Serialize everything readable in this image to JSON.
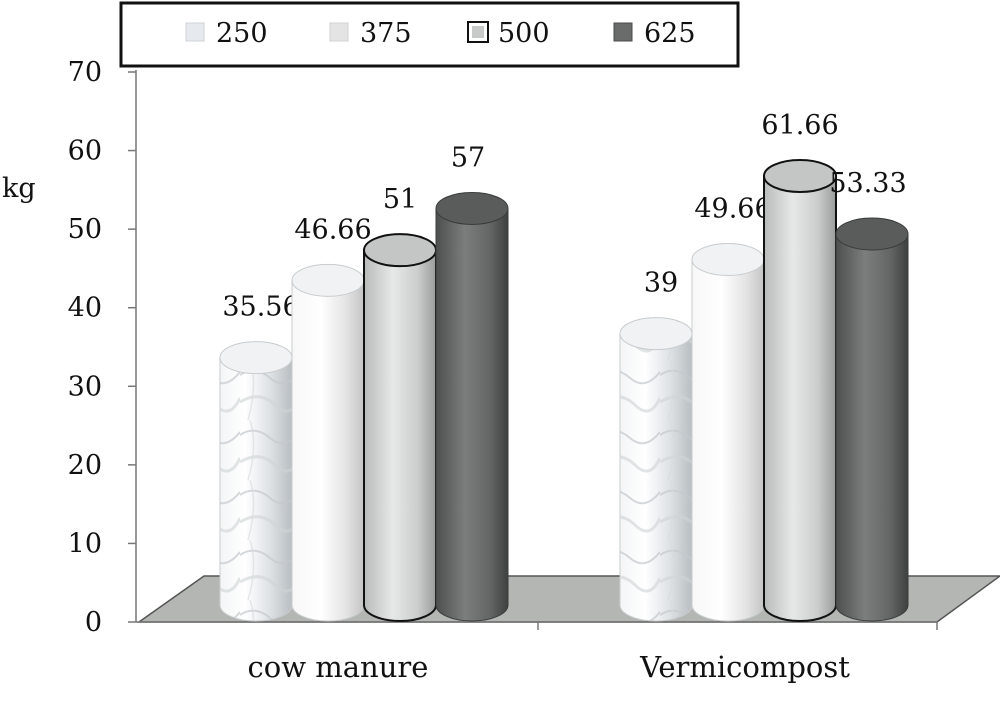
{
  "chart_data": {
    "type": "bar",
    "style": "3d-cylinder",
    "ylabel": "kg",
    "ylim": [
      0,
      70
    ],
    "yticks": [
      0,
      10,
      20,
      30,
      40,
      50,
      60,
      70
    ],
    "grid": false,
    "legend_position": "top",
    "categories": [
      "cow manure",
      "Vermicompost"
    ],
    "series": [
      {
        "name": "250",
        "values": [
          35.56,
          39
        ],
        "labels": [
          "35.56",
          "39"
        ],
        "color": "#e6e9ec"
      },
      {
        "name": "375",
        "values": [
          46.66,
          49.66
        ],
        "labels": [
          "46.66",
          "49.66"
        ],
        "color": "#ececec"
      },
      {
        "name": "500",
        "values": [
          51,
          61.66
        ],
        "labels": [
          "51",
          "61.66"
        ],
        "color": "#c9cbcb"
      },
      {
        "name": "625",
        "values": [
          57,
          53.33
        ],
        "labels": [
          "57",
          "53.33"
        ],
        "color": "#6a6c6c"
      }
    ]
  }
}
